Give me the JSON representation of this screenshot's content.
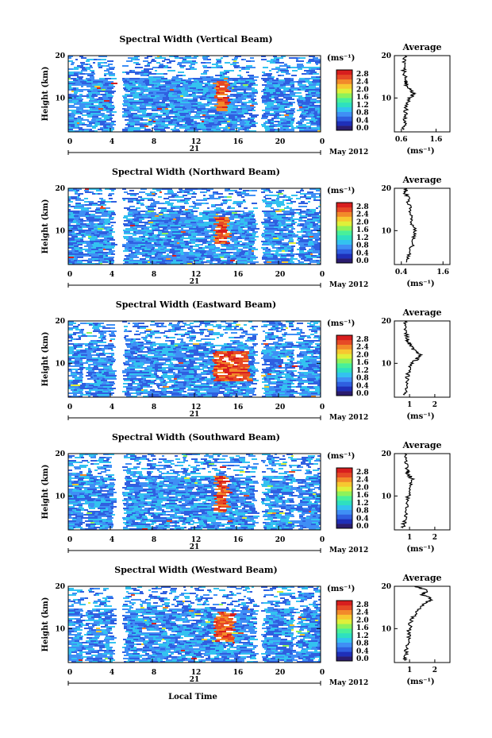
{
  "figure": {
    "x_axis_label": "Local Time",
    "date_label": "May 2012",
    "day_label": "21"
  },
  "colorbar": {
    "unit": "(ms⁻¹)",
    "ticks": [
      "2.8",
      "2.4",
      "2.0",
      "1.6",
      "1.2",
      "0.8",
      "0.4",
      "0.0"
    ],
    "colors": [
      "#2b1c6e",
      "#1f2fb8",
      "#2f5fe0",
      "#3f8ff5",
      "#33c2f0",
      "#2ee0c0",
      "#48f09a",
      "#8ef25a",
      "#dff03a",
      "#f7c830",
      "#f28a2a",
      "#e64a26",
      "#d81e1e"
    ]
  },
  "chart_data": [
    {
      "type": "heatmap",
      "title": "Spectral Width (Vertical Beam)",
      "xlabel": "Local Time",
      "ylabel": "Height (km)",
      "x_ticks": [
        "0",
        "4",
        "8",
        "12",
        "16",
        "20",
        "0"
      ],
      "y_ticks": [
        "20",
        "10"
      ],
      "xlim": [
        0,
        24
      ],
      "ylim": [
        2,
        20
      ],
      "clim": [
        0.0,
        2.8
      ],
      "gaps_hours": [
        [
          1.3,
          1.5
        ],
        [
          4.1,
          5.1
        ],
        [
          17.6,
          18.3
        ],
        [
          21.3,
          21.6
        ]
      ],
      "high_width_region": {
        "time_hours": [
          13.8,
          15.0
        ],
        "height_km": [
          7.0,
          14.0
        ]
      },
      "average_profile": {
        "title": "Average",
        "xlabel": "(ms⁻¹)",
        "x_ticks": [
          "0.6",
          "1.6"
        ],
        "y_ticks": [
          "20",
          "10"
        ],
        "xlim": [
          0.4,
          2.0
        ],
        "height_km": [
          2.5,
          4,
          6,
          8,
          10,
          11,
          12,
          13,
          14,
          16,
          18,
          20
        ],
        "values": [
          0.65,
          0.7,
          0.72,
          0.74,
          0.85,
          0.95,
          0.88,
          0.76,
          0.72,
          0.68,
          0.65,
          0.7
        ]
      }
    },
    {
      "type": "heatmap",
      "title": "Spectral Width (Northward Beam)",
      "xlabel": "Local Time",
      "ylabel": "Height (km)",
      "x_ticks": [
        "0",
        "4",
        "8",
        "12",
        "16",
        "20",
        "0"
      ],
      "y_ticks": [
        "20",
        "10"
      ],
      "xlim": [
        0,
        24
      ],
      "ylim": [
        2,
        20
      ],
      "clim": [
        0.0,
        2.8
      ],
      "gaps_hours": [
        [
          1.3,
          1.5
        ],
        [
          4.1,
          5.1
        ],
        [
          17.6,
          18.3
        ],
        [
          21.3,
          21.6
        ]
      ],
      "high_width_region": {
        "time_hours": [
          13.8,
          15.0
        ],
        "height_km": [
          7.0,
          13.5
        ]
      },
      "average_profile": {
        "title": "Average",
        "xlabel": "(ms⁻¹)",
        "x_ticks": [
          "0.4",
          "1.6"
        ],
        "y_ticks": [
          "20",
          "10"
        ],
        "xlim": [
          0.2,
          1.8
        ],
        "height_km": [
          2.5,
          4,
          6,
          8,
          10,
          12,
          14,
          16,
          18,
          19,
          20
        ],
        "values": [
          0.55,
          0.62,
          0.7,
          0.74,
          0.78,
          0.7,
          0.66,
          0.62,
          0.58,
          0.5,
          0.55
        ]
      }
    },
    {
      "type": "heatmap",
      "title": "Spectral Width (Eastward Beam)",
      "xlabel": "Local Time",
      "ylabel": "Height (km)",
      "x_ticks": [
        "0",
        "4",
        "8",
        "12",
        "16",
        "20",
        "0"
      ],
      "y_ticks": [
        "20",
        "10"
      ],
      "xlim": [
        0,
        24
      ],
      "ylim": [
        2,
        20
      ],
      "clim": [
        0.0,
        2.8
      ],
      "gaps_hours": [
        [
          1.3,
          1.5
        ],
        [
          4.1,
          5.1
        ],
        [
          17.6,
          18.3
        ],
        [
          21.3,
          21.6
        ]
      ],
      "high_width_region": {
        "time_hours": [
          13.6,
          17.0
        ],
        "height_km": [
          6.0,
          13.0
        ]
      },
      "average_profile": {
        "title": "Average",
        "xlabel": "(ms⁻¹)",
        "x_ticks": [
          "1",
          "2"
        ],
        "y_ticks": [
          "20",
          "10"
        ],
        "xlim": [
          0.4,
          2.6
        ],
        "height_km": [
          2.5,
          4,
          6,
          8,
          10,
          11,
          12,
          13,
          14,
          15,
          16,
          18,
          20
        ],
        "values": [
          0.8,
          0.85,
          0.9,
          0.95,
          1.1,
          1.3,
          1.45,
          1.2,
          1.05,
          0.95,
          0.9,
          0.85,
          0.8
        ]
      }
    },
    {
      "type": "heatmap",
      "title": "Spectral Width (Southward Beam)",
      "xlabel": "Local Time",
      "ylabel": "Height (km)",
      "x_ticks": [
        "0",
        "4",
        "8",
        "12",
        "16",
        "20",
        "0"
      ],
      "y_ticks": [
        "20",
        "10"
      ],
      "xlim": [
        0,
        24
      ],
      "ylim": [
        2,
        20
      ],
      "clim": [
        0.0,
        2.8
      ],
      "gaps_hours": [
        [
          1.3,
          1.5
        ],
        [
          4.1,
          5.1
        ],
        [
          17.6,
          18.3
        ],
        [
          21.3,
          21.6
        ]
      ],
      "high_width_region": {
        "time_hours": [
          13.8,
          15.0
        ],
        "height_km": [
          6.5,
          15.0
        ]
      },
      "average_profile": {
        "title": "Average",
        "xlabel": "(ms⁻¹)",
        "x_ticks": [
          "1",
          "2"
        ],
        "y_ticks": [
          "20",
          "10"
        ],
        "xlim": [
          0.4,
          2.6
        ],
        "height_km": [
          2.5,
          4,
          6,
          8,
          10,
          12,
          14,
          15,
          16,
          18,
          20
        ],
        "values": [
          0.75,
          0.8,
          0.85,
          0.9,
          0.95,
          1.0,
          1.1,
          0.95,
          0.9,
          0.85,
          0.8
        ]
      }
    },
    {
      "type": "heatmap",
      "title": "Spectral Width (Westward Beam)",
      "xlabel": "Local Time",
      "ylabel": "Height (km)",
      "x_ticks": [
        "0",
        "4",
        "8",
        "12",
        "16",
        "20",
        "0"
      ],
      "y_ticks": [
        "20",
        "10"
      ],
      "xlim": [
        0,
        24
      ],
      "ylim": [
        2,
        20
      ],
      "clim": [
        0.0,
        2.8
      ],
      "gaps_hours": [
        [
          1.3,
          1.5
        ],
        [
          4.1,
          5.1
        ],
        [
          17.6,
          18.3
        ],
        [
          21.3,
          21.6
        ]
      ],
      "high_width_region": {
        "time_hours": [
          13.8,
          15.5
        ],
        "height_km": [
          7.0,
          14.0
        ]
      },
      "average_profile": {
        "title": "Average",
        "xlabel": "(ms⁻¹)",
        "x_ticks": [
          "1",
          "2"
        ],
        "y_ticks": [
          "20",
          "10"
        ],
        "xlim": [
          0.4,
          2.6
        ],
        "height_km": [
          2.5,
          4,
          6,
          8,
          10,
          12,
          14,
          16,
          17,
          18,
          19,
          20
        ],
        "values": [
          0.8,
          0.85,
          0.9,
          0.95,
          1.0,
          1.05,
          1.3,
          1.6,
          1.9,
          1.5,
          1.7,
          1.2
        ]
      }
    }
  ]
}
